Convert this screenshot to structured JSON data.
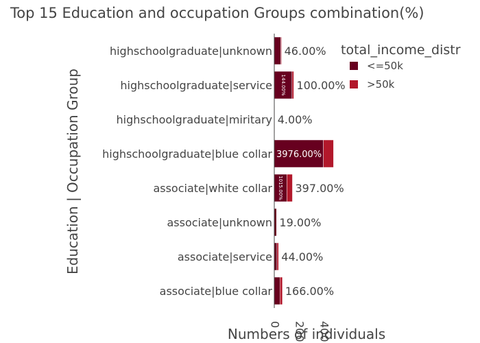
{
  "chart_data": {
    "type": "bar",
    "orientation": "horizontal",
    "barmode": "stack",
    "title": "Top 15 Education and occupation Groups combination(%)",
    "xlabel": "Numbers of individuals",
    "ylabel": "Education | Occupation Group",
    "xlim": [
      0,
      500
    ],
    "x_ticks": [
      0,
      200,
      400
    ],
    "x_tick_labels": [
      "0",
      "200",
      "400"
    ],
    "grid": false,
    "legend": {
      "title": "total_income_distr",
      "position": "top-right",
      "entries": [
        "<=50k",
        ">50k"
      ]
    },
    "categories": [
      "highschoolgraduate|unknown",
      "highschoolgraduate|service",
      "highschoolgraduate|miritary",
      "highschoolgraduate|blue collar",
      "associate|white collar",
      "associate|unknown",
      "associate|service",
      "associate|blue collar"
    ],
    "series": [
      {
        "name": "<=50k",
        "color": "#67001f",
        "values": [
          53,
          144,
          4,
          398,
          102,
          18,
          22,
          46
        ],
        "labels": [
          "",
          "144.00%",
          "",
          "3976.00%",
          "1015.00%",
          "",
          "",
          ""
        ]
      },
      {
        "name": ">50k",
        "color": "#b2182b",
        "values": [
          6,
          14,
          0,
          82,
          45,
          1,
          13,
          20
        ],
        "labels": [
          "46.00%",
          "100.00%",
          "4.00%",
          "",
          "397.00%",
          "19.00%",
          "44.00%",
          "166.00%"
        ]
      }
    ]
  }
}
